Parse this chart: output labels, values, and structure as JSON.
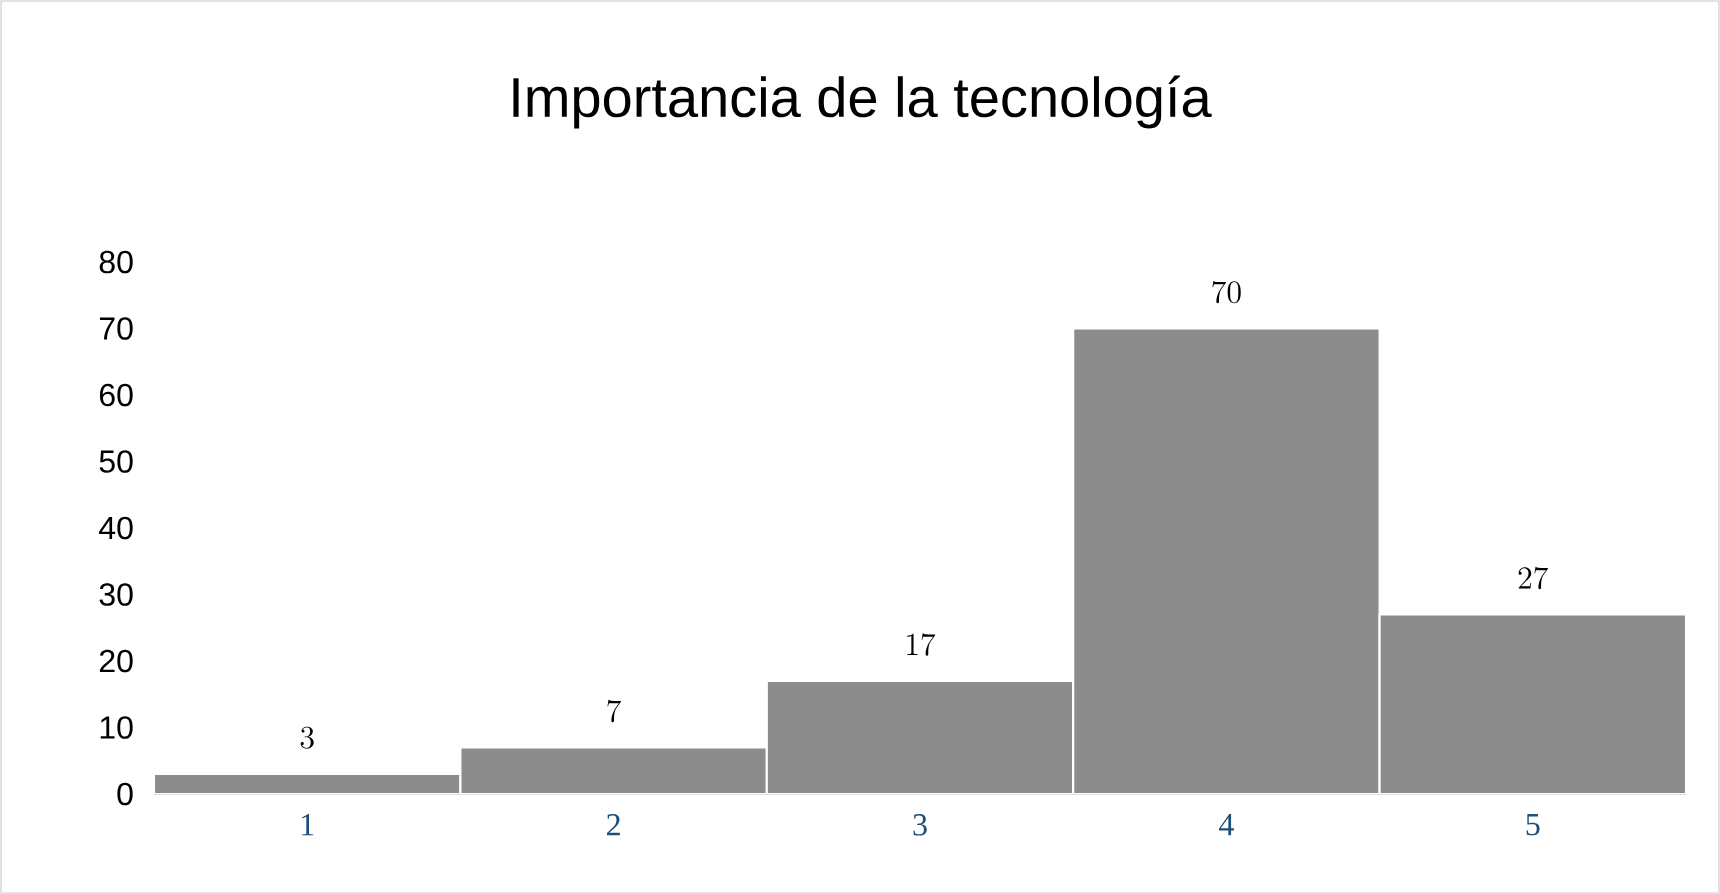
{
  "chart_data": {
    "type": "bar",
    "title": "Importancia de la tecnología",
    "categories": [
      "1",
      "2",
      "3",
      "4",
      "5"
    ],
    "values": [
      3,
      7,
      17,
      70,
      27
    ],
    "color": "#8c8c8c",
    "ylim": [
      0,
      80
    ],
    "yticks": [
      0,
      10,
      20,
      30,
      40,
      50,
      60,
      70,
      80
    ],
    "data_labels": true
  }
}
